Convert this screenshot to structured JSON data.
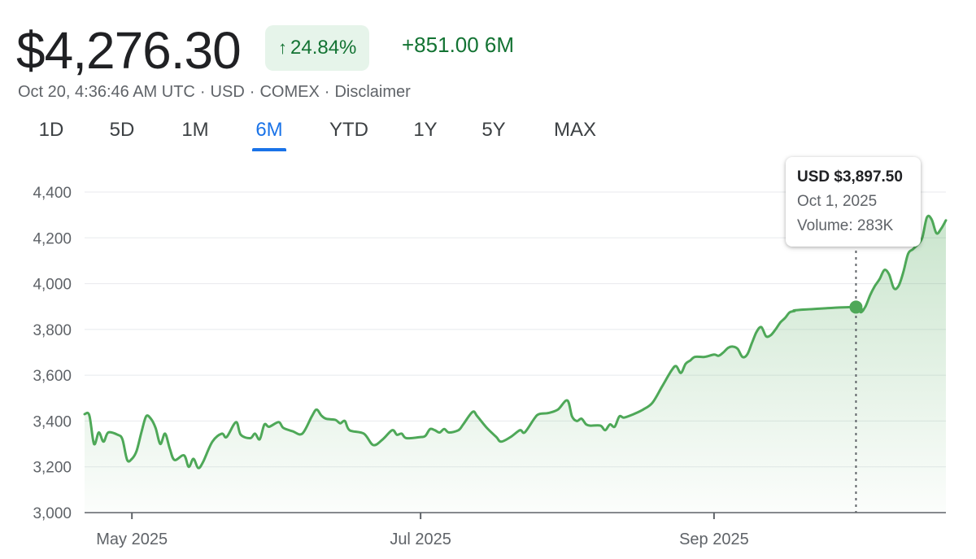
{
  "header": {
    "price": "$4,276.30",
    "change_arrow": "↑",
    "change_percent": "24.84%",
    "change_absolute": "+851.00 6M",
    "meta": [
      "Oct 20, 4:36:46 AM UTC",
      "USD",
      "COMEX",
      "Disclaimer"
    ],
    "meta_separator": "·"
  },
  "tabs": [
    {
      "label": "1D",
      "active": false
    },
    {
      "label": "5D",
      "active": false
    },
    {
      "label": "1M",
      "active": false
    },
    {
      "label": "6M",
      "active": true
    },
    {
      "label": "YTD",
      "active": false
    },
    {
      "label": "1Y",
      "active": false
    },
    {
      "label": "5Y",
      "active": false
    },
    {
      "label": "MAX",
      "active": false
    }
  ],
  "tooltip": {
    "price": "USD $3,897.50",
    "date": "Oct 1, 2025",
    "volume": "Volume: 283K"
  },
  "colors": {
    "line": "#4ea858",
    "up_text": "#137333",
    "up_bg": "#e6f4ea",
    "active_tab": "#1a73e8"
  },
  "chart_data": {
    "type": "area",
    "ylim": [
      3000,
      4400
    ],
    "yticks": [
      3000,
      3200,
      3400,
      3600,
      3800,
      4000,
      4200,
      4400
    ],
    "ytick_labels": [
      "3,000",
      "3,200",
      "3,400",
      "3,600",
      "3,800",
      "4,000",
      "4,200",
      "4,400"
    ],
    "x_domain": [
      "2025-04-21",
      "2025-10-20"
    ],
    "xticks": [
      {
        "date": "2025-05-01",
        "label": "May 2025"
      },
      {
        "date": "2025-07-01",
        "label": "Jul 2025"
      },
      {
        "date": "2025-09-01",
        "label": "Sep 2025"
      }
    ],
    "grid": true,
    "highlight": {
      "date": "2025-10-01",
      "value": 3897.5
    },
    "series": [
      {
        "points": [
          [
            "2025-04-21",
            3430
          ],
          [
            "2025-04-22",
            3425
          ],
          [
            "2025-04-23",
            3300
          ],
          [
            "2025-04-24",
            3350
          ],
          [
            "2025-04-25",
            3310
          ],
          [
            "2025-04-26",
            3350
          ],
          [
            "2025-04-28",
            3340
          ],
          [
            "2025-04-29",
            3320
          ],
          [
            "2025-04-30",
            3230
          ],
          [
            "2025-05-01",
            3235
          ],
          [
            "2025-05-02",
            3270
          ],
          [
            "2025-05-03",
            3350
          ],
          [
            "2025-05-04",
            3420
          ],
          [
            "2025-05-05",
            3410
          ],
          [
            "2025-05-06",
            3370
          ],
          [
            "2025-05-07",
            3300
          ],
          [
            "2025-05-08",
            3345
          ],
          [
            "2025-05-09",
            3280
          ],
          [
            "2025-05-10",
            3230
          ],
          [
            "2025-05-12",
            3250
          ],
          [
            "2025-05-13",
            3200
          ],
          [
            "2025-05-14",
            3235
          ],
          [
            "2025-05-15",
            3195
          ],
          [
            "2025-05-16",
            3220
          ],
          [
            "2025-05-18",
            3310
          ],
          [
            "2025-05-20",
            3345
          ],
          [
            "2025-05-21",
            3330
          ],
          [
            "2025-05-23",
            3395
          ],
          [
            "2025-05-24",
            3340
          ],
          [
            "2025-05-26",
            3325
          ],
          [
            "2025-05-27",
            3345
          ],
          [
            "2025-05-28",
            3320
          ],
          [
            "2025-05-29",
            3385
          ],
          [
            "2025-05-30",
            3375
          ],
          [
            "2025-06-01",
            3395
          ],
          [
            "2025-06-02",
            3370
          ],
          [
            "2025-06-04",
            3355
          ],
          [
            "2025-06-06",
            3345
          ],
          [
            "2025-06-08",
            3420
          ],
          [
            "2025-06-09",
            3450
          ],
          [
            "2025-06-10",
            3425
          ],
          [
            "2025-06-11",
            3410
          ],
          [
            "2025-06-13",
            3405
          ],
          [
            "2025-06-14",
            3390
          ],
          [
            "2025-06-15",
            3400
          ],
          [
            "2025-06-16",
            3360
          ],
          [
            "2025-06-19",
            3345
          ],
          [
            "2025-06-21",
            3295
          ],
          [
            "2025-06-23",
            3320
          ],
          [
            "2025-06-25",
            3360
          ],
          [
            "2025-06-26",
            3340
          ],
          [
            "2025-06-27",
            3345
          ],
          [
            "2025-06-28",
            3325
          ],
          [
            "2025-07-01",
            3330
          ],
          [
            "2025-07-02",
            3335
          ],
          [
            "2025-07-03",
            3365
          ],
          [
            "2025-07-04",
            3360
          ],
          [
            "2025-07-05",
            3350
          ],
          [
            "2025-07-06",
            3365
          ],
          [
            "2025-07-07",
            3350
          ],
          [
            "2025-07-09",
            3360
          ],
          [
            "2025-07-10",
            3385
          ],
          [
            "2025-07-12",
            3440
          ],
          [
            "2025-07-13",
            3420
          ],
          [
            "2025-07-15",
            3370
          ],
          [
            "2025-07-17",
            3330
          ],
          [
            "2025-07-18",
            3310
          ],
          [
            "2025-07-20",
            3330
          ],
          [
            "2025-07-22",
            3360
          ],
          [
            "2025-07-23",
            3350
          ],
          [
            "2025-07-25",
            3410
          ],
          [
            "2025-07-26",
            3430
          ],
          [
            "2025-07-28",
            3435
          ],
          [
            "2025-07-30",
            3450
          ],
          [
            "2025-08-01",
            3490
          ],
          [
            "2025-08-02",
            3420
          ],
          [
            "2025-08-03",
            3400
          ],
          [
            "2025-08-04",
            3410
          ],
          [
            "2025-08-05",
            3385
          ],
          [
            "2025-08-06",
            3380
          ],
          [
            "2025-08-08",
            3380
          ],
          [
            "2025-08-09",
            3360
          ],
          [
            "2025-08-10",
            3385
          ],
          [
            "2025-08-11",
            3375
          ],
          [
            "2025-08-12",
            3420
          ],
          [
            "2025-08-13",
            3415
          ],
          [
            "2025-08-15",
            3430
          ],
          [
            "2025-08-17",
            3450
          ],
          [
            "2025-08-19",
            3480
          ],
          [
            "2025-08-21",
            3550
          ],
          [
            "2025-08-23",
            3620
          ],
          [
            "2025-08-24",
            3640
          ],
          [
            "2025-08-25",
            3610
          ],
          [
            "2025-08-26",
            3650
          ],
          [
            "2025-08-27",
            3665
          ],
          [
            "2025-08-28",
            3680
          ],
          [
            "2025-08-30",
            3680
          ],
          [
            "2025-09-01",
            3690
          ],
          [
            "2025-09-02",
            3685
          ],
          [
            "2025-09-03",
            3700
          ],
          [
            "2025-09-04",
            3720
          ],
          [
            "2025-09-05",
            3725
          ],
          [
            "2025-09-06",
            3715
          ],
          [
            "2025-09-07",
            3680
          ],
          [
            "2025-09-08",
            3690
          ],
          [
            "2025-09-09",
            3740
          ],
          [
            "2025-09-10",
            3790
          ],
          [
            "2025-09-11",
            3810
          ],
          [
            "2025-09-12",
            3770
          ],
          [
            "2025-09-13",
            3775
          ],
          [
            "2025-09-14",
            3800
          ],
          [
            "2025-09-15",
            3830
          ],
          [
            "2025-09-16",
            3850
          ],
          [
            "2025-09-17",
            3875
          ],
          [
            "2025-09-18",
            3880
          ],
          [
            "2025-09-19",
            3885
          ],
          [
            "2025-10-01",
            3897.5
          ],
          [
            "2025-10-02",
            3875
          ],
          [
            "2025-10-03",
            3900
          ],
          [
            "2025-10-04",
            3950
          ],
          [
            "2025-10-05",
            3990
          ],
          [
            "2025-10-06",
            4020
          ],
          [
            "2025-10-07",
            4060
          ],
          [
            "2025-10-08",
            4040
          ],
          [
            "2025-10-09",
            3980
          ],
          [
            "2025-10-10",
            3990
          ],
          [
            "2025-10-11",
            4050
          ],
          [
            "2025-10-12",
            4130
          ],
          [
            "2025-10-13",
            4150
          ],
          [
            "2025-10-14",
            4170
          ],
          [
            "2025-10-15",
            4200
          ],
          [
            "2025-10-16",
            4290
          ],
          [
            "2025-10-17",
            4280
          ],
          [
            "2025-10-18",
            4220
          ],
          [
            "2025-10-19",
            4240
          ],
          [
            "2025-10-20",
            4276.3
          ]
        ]
      }
    ]
  }
}
